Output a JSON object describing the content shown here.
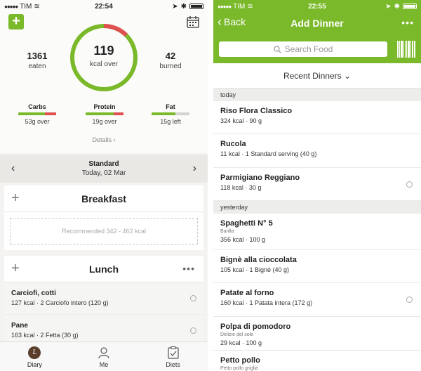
{
  "left": {
    "status": {
      "carrier": "TIM",
      "time": "22:54"
    },
    "summary": {
      "eaten_value": "1361",
      "eaten_label": "eaten",
      "ring_value": "119",
      "ring_label": "kcal over",
      "burned_value": "42",
      "burned_label": "burned"
    },
    "macros": [
      {
        "name": "Carbs",
        "sub": "53g over"
      },
      {
        "name": "Protein",
        "sub": "19g over"
      },
      {
        "name": "Fat",
        "sub": "15g left"
      }
    ],
    "details_label": "Details",
    "date": {
      "plan": "Standard",
      "day": "Today, 02 Mar"
    },
    "breakfast": {
      "title": "Breakfast",
      "recommend": "Recommended 342 - 462 kcal"
    },
    "lunch": {
      "title": "Lunch",
      "items": [
        {
          "name": "Carciofi, cotti",
          "detail": "127 kcal · 2 Carciofo intero (120 g)"
        },
        {
          "name": "Pane",
          "detail": "163 kcal · 2 Fetta (30 g)"
        }
      ]
    },
    "tabs": {
      "diary": "Diary",
      "me": "Me",
      "diets": "Diets"
    }
  },
  "right": {
    "status": {
      "carrier": "TIM",
      "time": "22:55"
    },
    "nav": {
      "back": "Back",
      "title": "Add Dinner"
    },
    "search_placeholder": "Search Food",
    "recent_label": "Recent Dinners",
    "today_label": "today",
    "yesterday_label": "yesterday",
    "today": [
      {
        "name": "Riso Flora Classico",
        "detail": "324 kcal · 90 g"
      },
      {
        "name": "Rucola",
        "detail": "11 kcal · 1 Standard serving (40 g)"
      },
      {
        "name": "Parmigiano Reggiano",
        "detail": "118 kcal · 30 g"
      }
    ],
    "yesterday": [
      {
        "name": "Spaghetti N° 5",
        "brand": "Barilla",
        "detail": "356 kcal · 100 g"
      },
      {
        "name": "Bignè alla cioccolata",
        "detail": "105 kcal · 1 Bignè (40 g)"
      },
      {
        "name": "Patate al forno",
        "detail": "160 kcal · 1 Patata intera (172 g)"
      },
      {
        "name": "Polpa di pomodoro",
        "brand": "Delizie del sole",
        "detail": "29 kcal · 100 g"
      },
      {
        "name": "Petto pollo",
        "brand": "Petto pollo griglia"
      }
    ]
  },
  "colors": {
    "accent": "#7ab929",
    "over": "#e05050"
  }
}
